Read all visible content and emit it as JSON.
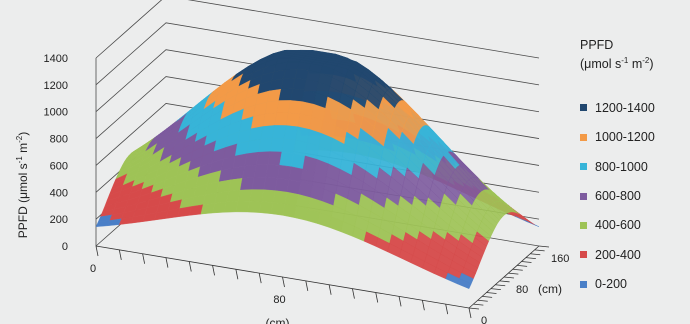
{
  "chart_data": {
    "type": "surface3d",
    "title": "",
    "ylabel": {
      "main": "PPFD (μmol s",
      "sup1": "-1",
      "mid": " m",
      "sup2": "-2",
      "end": ")"
    },
    "x_axis": {
      "label": "(cm)",
      "range": [
        0,
        160
      ],
      "ticks": [
        "0",
        "80",
        "160"
      ]
    },
    "depth_axis": {
      "label": "(cm)",
      "range": [
        0,
        160
      ],
      "ticks": [
        "0",
        "80",
        "160"
      ]
    },
    "z_axis": {
      "range": [
        0,
        1400
      ],
      "ticks": [
        "0",
        "200",
        "400",
        "600",
        "800",
        "1000",
        "1200",
        "1400"
      ]
    },
    "peak_ppfd": 1400,
    "center_cm": [
      80,
      80
    ],
    "bands": [
      {
        "label": "1200-1400",
        "min": 1200,
        "max": 1400,
        "color": "#21476f"
      },
      {
        "label": "1000-1200",
        "min": 1000,
        "max": 1200,
        "color": "#f39a47"
      },
      {
        "label": "800-1000",
        "min": 800,
        "max": 1000,
        "color": "#37b4d8"
      },
      {
        "label": "600-800",
        "min": 600,
        "max": 800,
        "color": "#7d5b9e"
      },
      {
        "label": "400-600",
        "min": 400,
        "max": 600,
        "color": "#9ec356"
      },
      {
        "label": "200-400",
        "min": 200,
        "max": 400,
        "color": "#d64a4a"
      },
      {
        "label": "0-200",
        "min": 0,
        "max": 200,
        "color": "#4a7fc7"
      }
    ]
  },
  "legend": {
    "title_line1": "PPFD",
    "title_line2_main": "(μmol s",
    "title_line2_sup1": "-1",
    "title_line2_mid": "  m",
    "title_line2_sup2": "-2",
    "title_line2_end": ")"
  }
}
